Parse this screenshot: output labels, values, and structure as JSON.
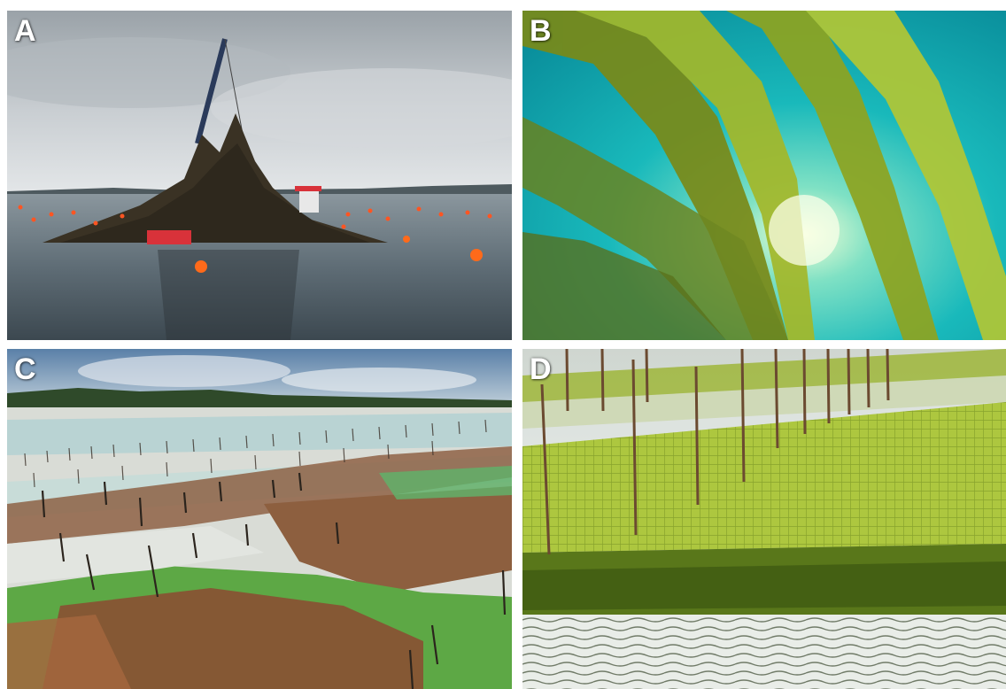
{
  "panels": [
    {
      "label": "A",
      "scene": "seaweed-harvest-boat-at-sea"
    },
    {
      "label": "B",
      "scene": "underwater-kelp-forest"
    },
    {
      "label": "C",
      "scene": "intertidal-seaweed-farm-with-stakes"
    },
    {
      "label": "D",
      "scene": "seaweed-net-cultivation-on-poles"
    }
  ],
  "colors": {
    "sky_overcast": "#cfd3d6",
    "sea_calm": "#5d6b75",
    "kelp_green": "#9fb52a",
    "underwater_teal": "#18b5b8",
    "tidal_sand": "#d9dcd6",
    "seaweed_red": "#8a5a3c",
    "seaweed_green": "#5da845",
    "net_green": "#a8c23a",
    "buoy_orange": "#ff6a1a",
    "boat_red": "#d8323a"
  }
}
